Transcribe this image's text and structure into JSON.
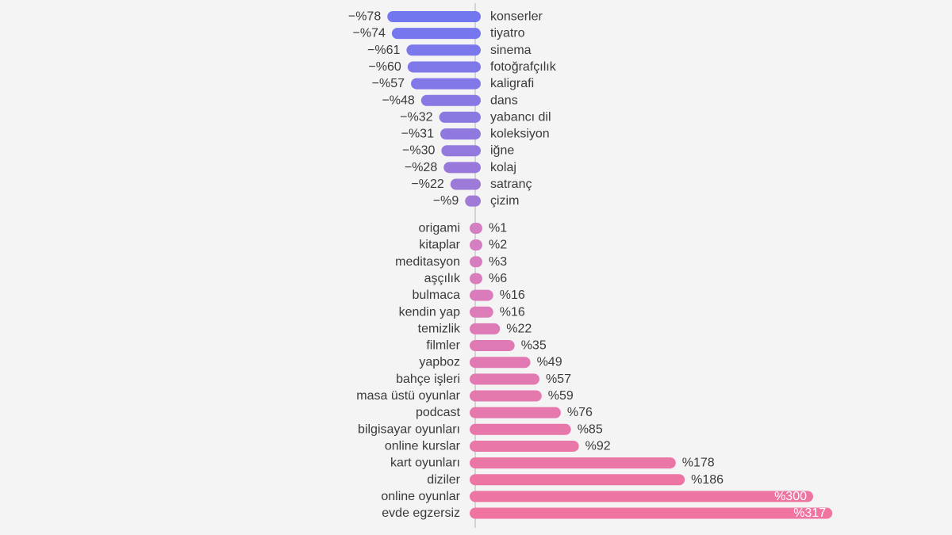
{
  "chart_data": {
    "type": "bar",
    "orientation": "horizontal",
    "value_prefix": "%",
    "colors": {
      "decrease_start": "#7277f0",
      "decrease_end": "#a07ad6",
      "increase_start": "#d47fc4",
      "increase_end": "#ef749f",
      "axis": "#c9c9c9",
      "inside_label": "#ffffff"
    },
    "decreases": [
      {
        "label": "konserler",
        "value": -78
      },
      {
        "label": "tiyatro",
        "value": -74
      },
      {
        "label": "sinema",
        "value": -61
      },
      {
        "label": "fotoğrafçılık",
        "value": -60
      },
      {
        "label": "kaligrafi",
        "value": -57
      },
      {
        "label": "dans",
        "value": -48
      },
      {
        "label": "yabancı dil",
        "value": -32
      },
      {
        "label": "koleksiyon",
        "value": -31
      },
      {
        "label": "iğne",
        "value": -30
      },
      {
        "label": "kolaj",
        "value": -28
      },
      {
        "label": "satranç",
        "value": -22
      },
      {
        "label": "çizim",
        "value": -9
      }
    ],
    "increases": [
      {
        "label": "origami",
        "value": 1
      },
      {
        "label": "kitaplar",
        "value": 2
      },
      {
        "label": "meditasyon",
        "value": 3
      },
      {
        "label": "aşçılık",
        "value": 6
      },
      {
        "label": "bulmaca",
        "value": 16
      },
      {
        "label": "kendin yap",
        "value": 16
      },
      {
        "label": "temizlik",
        "value": 22
      },
      {
        "label": "filmler",
        "value": 35
      },
      {
        "label": "yapboz",
        "value": 49
      },
      {
        "label": "bahçe işleri",
        "value": 57
      },
      {
        "label": "masa üstü oyunlar",
        "value": 59
      },
      {
        "label": "podcast",
        "value": 76
      },
      {
        "label": "bilgisayar oyunları",
        "value": 85
      },
      {
        "label": "online kurslar",
        "value": 92
      },
      {
        "label": "kart oyunları",
        "value": 178
      },
      {
        "label": "diziler",
        "value": 186
      },
      {
        "label": "online oyunlar",
        "value": 300
      },
      {
        "label": "evde egzersiz",
        "value": 317
      }
    ]
  }
}
